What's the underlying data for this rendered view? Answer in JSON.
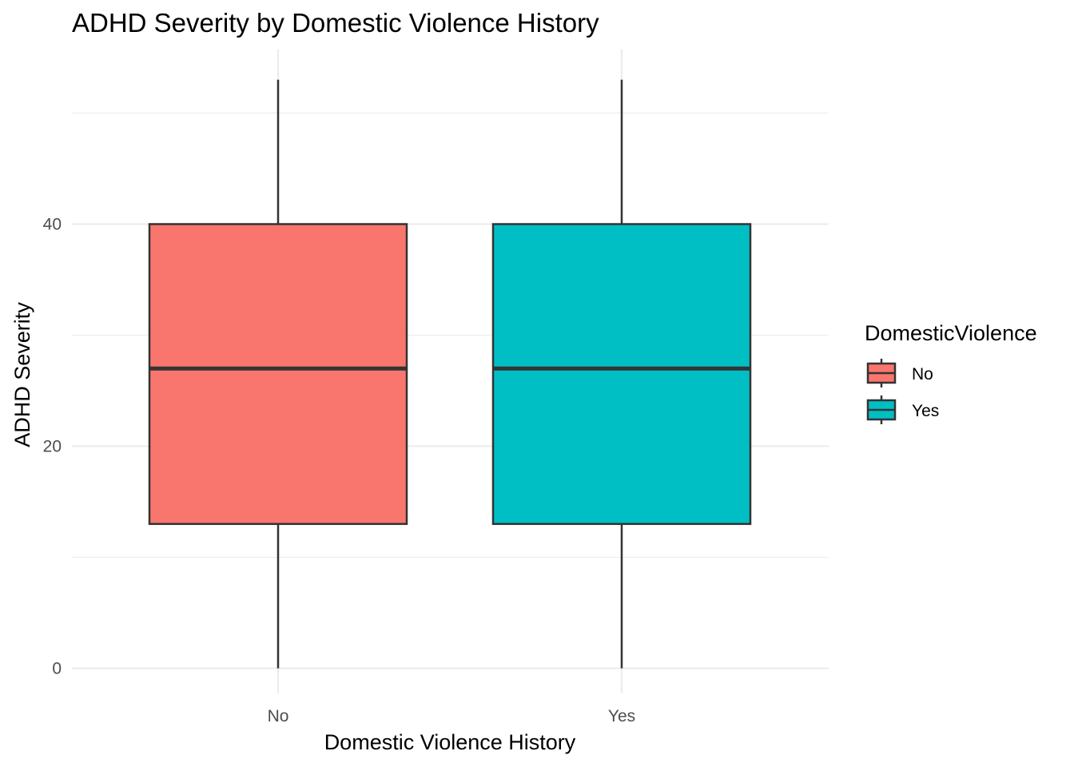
{
  "chart_data": {
    "type": "box",
    "title": "ADHD Severity by Domestic Violence History",
    "xlabel": "Domestic Violence History",
    "ylabel": "ADHD Severity",
    "categories": [
      "No",
      "Yes"
    ],
    "boxes": [
      {
        "category": "No",
        "min": 0,
        "q1": 13,
        "median": 27,
        "q3": 40,
        "max": 53,
        "color": "#F8766D"
      },
      {
        "category": "Yes",
        "min": 0,
        "q1": 13,
        "median": 27,
        "q3": 40,
        "max": 53,
        "color": "#00BFC4"
      }
    ],
    "ylim": [
      -4.5,
      55.5
    ],
    "yticks": [
      0,
      20,
      40
    ],
    "grid": true,
    "legend": {
      "title": "DomesticViolence",
      "placement": "right",
      "entries": [
        {
          "label": "No",
          "color": "#F8766D"
        },
        {
          "label": "Yes",
          "color": "#00BFC4"
        }
      ]
    }
  }
}
